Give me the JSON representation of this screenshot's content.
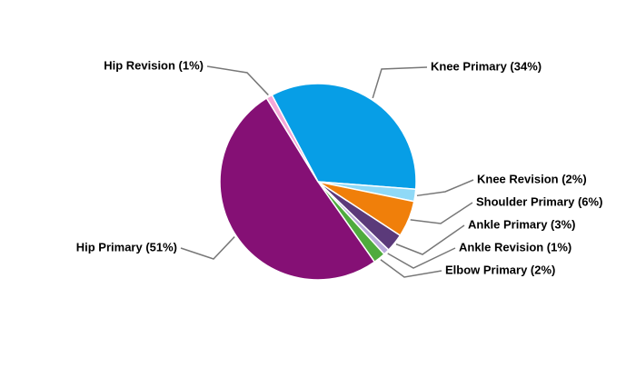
{
  "chart_data": {
    "type": "pie",
    "categories": [
      "Knee Primary (34%)",
      "Knee Revision (2%)",
      "Shoulder Primary (6%)",
      "Ankle Primary (3%)",
      "Ankle Revision (1%)",
      "Elbow Primary (2%)",
      "Hip Primary (51%)",
      "Hip Revision (1%)"
    ],
    "values": [
      34,
      2,
      6,
      3,
      1,
      2,
      51,
      1
    ],
    "colors": [
      "#079ee6",
      "#8fd9f7",
      "#f07f0a",
      "#5b3a7a",
      "#b9aadb",
      "#4fab3e",
      "#851075",
      "#f4a7d8"
    ]
  }
}
